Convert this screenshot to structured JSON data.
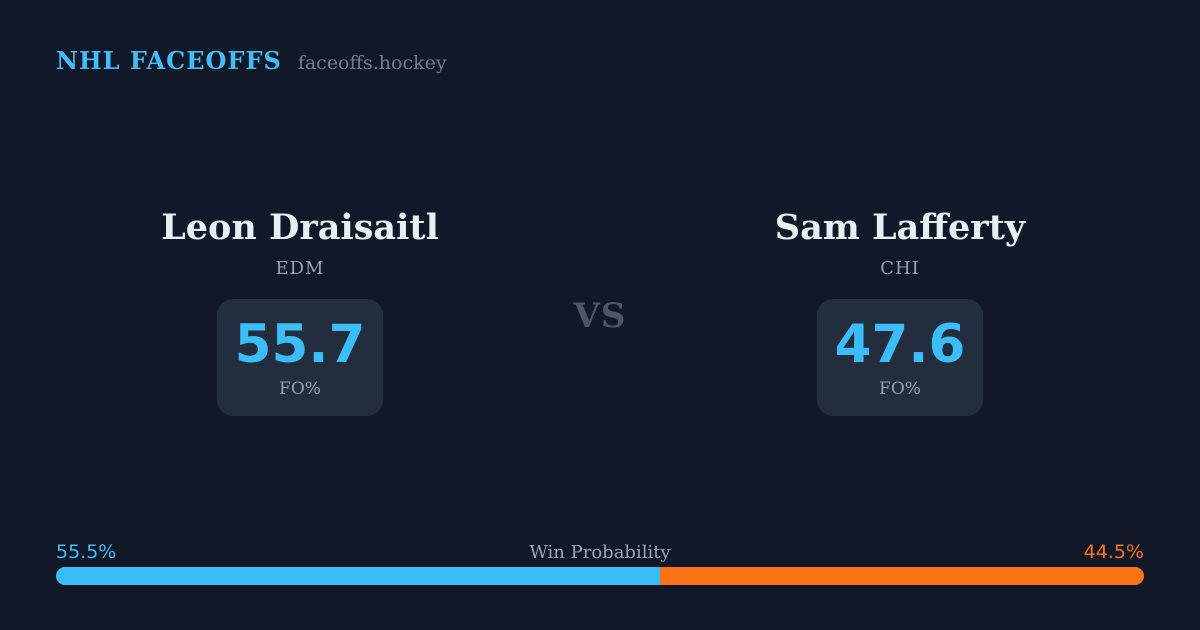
{
  "header": {
    "brand": "NHL FACEOFFS",
    "site": "faceoffs.hockey"
  },
  "vs_label": "VS",
  "players": {
    "left": {
      "name": "Leon Draisaitl",
      "team": "EDM",
      "stat_value": "55.7",
      "stat_label": "FO%"
    },
    "right": {
      "name": "Sam Lafferty",
      "team": "CHI",
      "stat_value": "47.6",
      "stat_label": "FO%"
    }
  },
  "win_probability": {
    "label": "Win Probability",
    "left_pct_label": "55.5%",
    "right_pct_label": "44.5%",
    "left_value": 55.5,
    "right_value": 44.5
  },
  "colors": {
    "background": "#111827",
    "card_background": "#222e3d",
    "accent_blue": "#38bdf8",
    "accent_orange": "#f97316",
    "name_text": "#e9edf4",
    "muted_text": "#94a0b4",
    "vs_text": "#4b5769",
    "site_text": "#717d90"
  },
  "chart_data": {
    "type": "bar",
    "title": "NHL FACEOFFS — Leon Draisaitl (EDM) vs Sam Lafferty (CHI)",
    "categories": [
      "Leon Draisaitl (EDM)",
      "Sam Lafferty (CHI)"
    ],
    "series": [
      {
        "name": "FO%",
        "values": [
          55.7,
          47.6
        ]
      },
      {
        "name": "Win Probability %",
        "values": [
          55.5,
          44.5
        ]
      }
    ],
    "xlabel": "",
    "ylabel": "",
    "legend_position": "none",
    "notes": "Win probability rendered as a single horizontal stacked bar: blue 55.5% (left player), orange 44.5% (right player)."
  }
}
